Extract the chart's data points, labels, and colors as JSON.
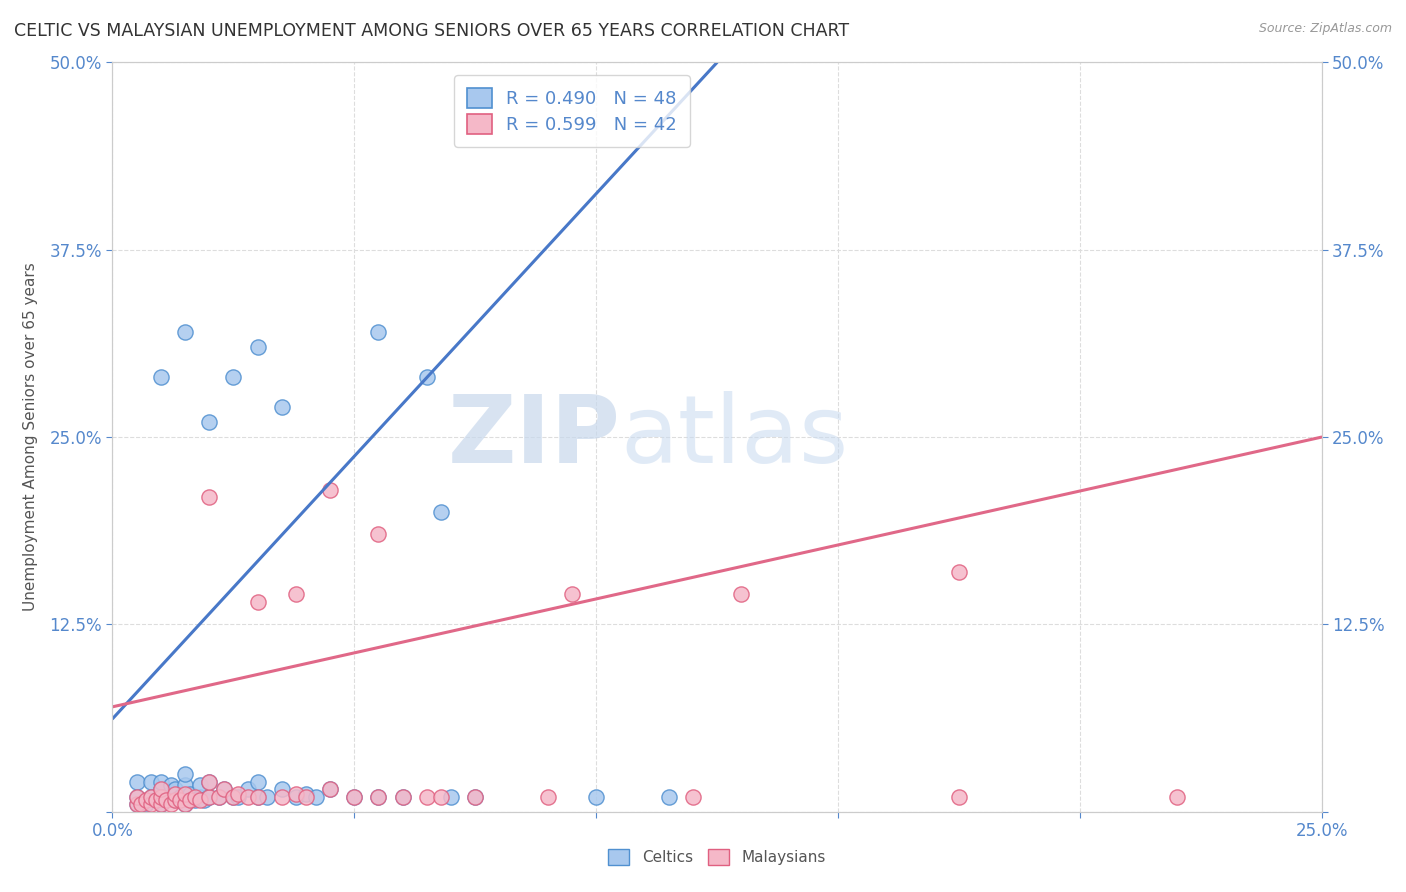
{
  "title": "CELTIC VS MALAYSIAN UNEMPLOYMENT AMONG SENIORS OVER 65 YEARS CORRELATION CHART",
  "source": "Source: ZipAtlas.com",
  "ylabel": "Unemployment Among Seniors over 65 years",
  "celtics_R": 0.49,
  "celtics_N": 48,
  "malaysians_R": 0.599,
  "malaysians_N": 42,
  "celtics_color": "#a8c8ee",
  "malaysians_color": "#f5b8c8",
  "celtics_edge_color": "#5090d0",
  "malaysians_edge_color": "#e06080",
  "celtics_line_color": "#4878c8",
  "malaysians_line_color": "#e06888",
  "grid_color": "#dddddd",
  "background_color": "#ffffff",
  "watermark_color": "#dce8f5",
  "title_color": "#333333",
  "source_color": "#999999",
  "tick_color": "#5588cc",
  "ylabel_color": "#555555",
  "celtics_x": [
    0.005,
    0.005,
    0.005,
    0.007,
    0.008,
    0.008,
    0.009,
    0.01,
    0.01,
    0.01,
    0.011,
    0.012,
    0.012,
    0.013,
    0.013,
    0.014,
    0.015,
    0.015,
    0.015,
    0.015,
    0.016,
    0.017,
    0.018,
    0.018,
    0.019,
    0.02,
    0.02,
    0.022,
    0.023,
    0.025,
    0.026,
    0.028,
    0.03,
    0.03,
    0.032,
    0.035,
    0.038,
    0.04,
    0.042,
    0.045,
    0.05,
    0.055,
    0.06,
    0.068,
    0.07,
    0.075,
    0.1,
    0.115
  ],
  "celtics_y": [
    0.005,
    0.01,
    0.02,
    0.005,
    0.01,
    0.02,
    0.008,
    0.005,
    0.015,
    0.02,
    0.008,
    0.01,
    0.018,
    0.008,
    0.015,
    0.01,
    0.005,
    0.01,
    0.018,
    0.025,
    0.012,
    0.008,
    0.01,
    0.018,
    0.008,
    0.01,
    0.02,
    0.01,
    0.015,
    0.01,
    0.01,
    0.015,
    0.01,
    0.02,
    0.01,
    0.015,
    0.01,
    0.012,
    0.01,
    0.015,
    0.01,
    0.01,
    0.01,
    0.2,
    0.01,
    0.01,
    0.01,
    0.01
  ],
  "celtics_x_high": [
    0.01,
    0.015,
    0.02,
    0.025,
    0.03,
    0.035,
    0.055,
    0.065
  ],
  "celtics_y_high": [
    0.29,
    0.32,
    0.26,
    0.29,
    0.31,
    0.27,
    0.32,
    0.29
  ],
  "malaysians_x": [
    0.005,
    0.005,
    0.006,
    0.007,
    0.008,
    0.008,
    0.009,
    0.01,
    0.01,
    0.01,
    0.011,
    0.012,
    0.013,
    0.013,
    0.014,
    0.015,
    0.015,
    0.016,
    0.017,
    0.018,
    0.02,
    0.02,
    0.022,
    0.023,
    0.025,
    0.026,
    0.028,
    0.03,
    0.035,
    0.038,
    0.04,
    0.045,
    0.05,
    0.055,
    0.06,
    0.065,
    0.068,
    0.075,
    0.09,
    0.12,
    0.175,
    0.22
  ],
  "malaysians_y": [
    0.005,
    0.01,
    0.005,
    0.008,
    0.005,
    0.01,
    0.008,
    0.005,
    0.01,
    0.015,
    0.008,
    0.005,
    0.008,
    0.012,
    0.008,
    0.005,
    0.012,
    0.008,
    0.01,
    0.008,
    0.01,
    0.02,
    0.01,
    0.015,
    0.01,
    0.012,
    0.01,
    0.01,
    0.01,
    0.012,
    0.01,
    0.015,
    0.01,
    0.01,
    0.01,
    0.01,
    0.01,
    0.01,
    0.01,
    0.01,
    0.01,
    0.01
  ],
  "malaysians_x_high": [
    0.02,
    0.03,
    0.038,
    0.045,
    0.055,
    0.095,
    0.13,
    0.175
  ],
  "malaysians_y_high": [
    0.21,
    0.14,
    0.145,
    0.215,
    0.185,
    0.145,
    0.145,
    0.16
  ],
  "celtics_line_x0": 0.0,
  "celtics_line_y0": 0.062,
  "celtics_line_x1": 0.125,
  "celtics_line_y1": 0.5,
  "malaysians_line_x0": 0.0,
  "malaysians_line_y0": 0.07,
  "malaysians_line_x1": 0.25,
  "malaysians_line_y1": 0.25,
  "xlim": [
    0.0,
    0.25
  ],
  "ylim": [
    0.0,
    0.5
  ]
}
